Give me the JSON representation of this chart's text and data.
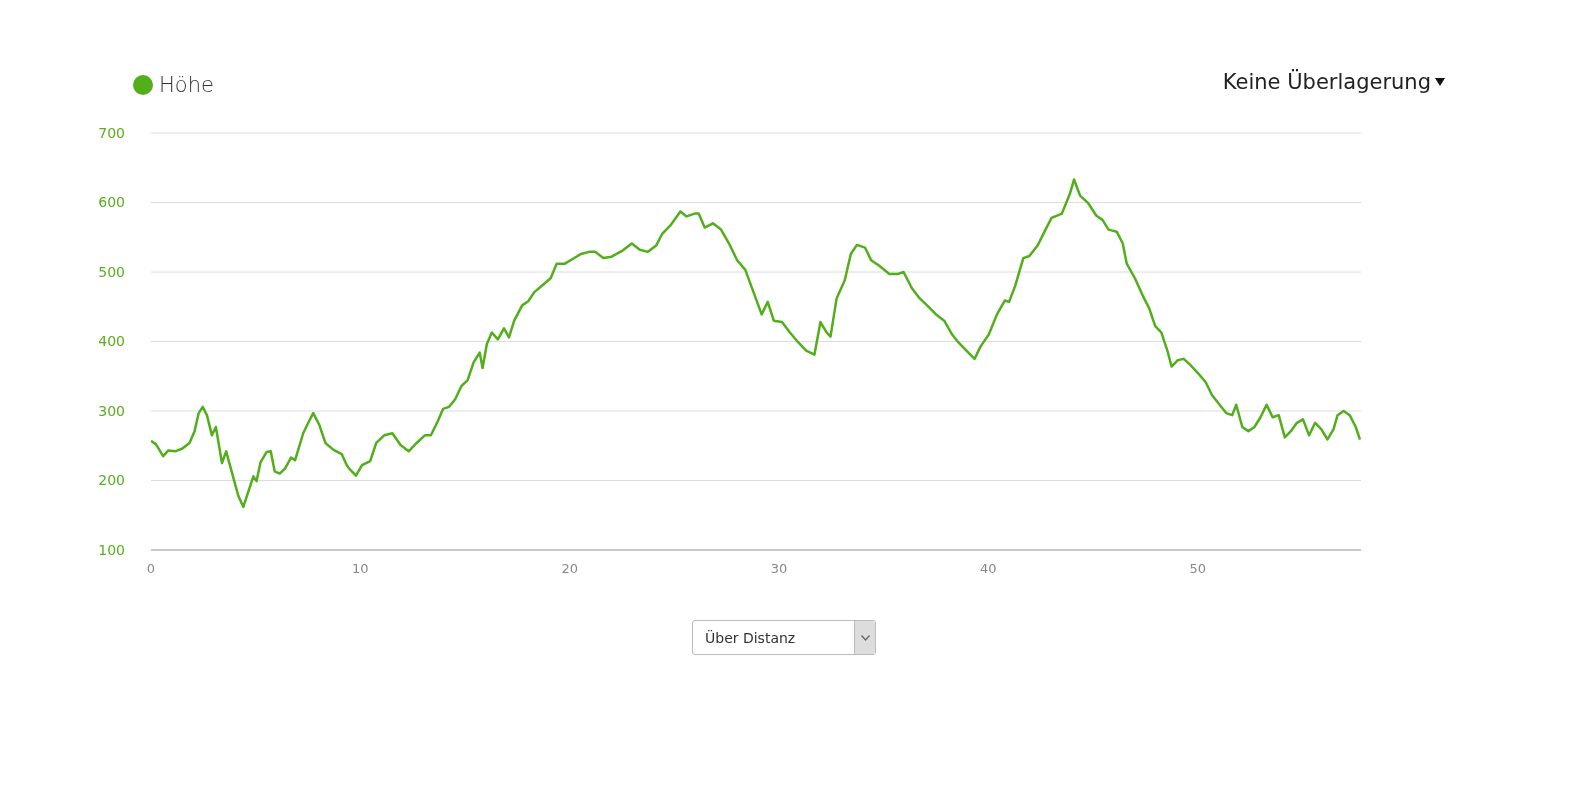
{
  "chart_data": {
    "type": "line",
    "x": [
      0,
      0.24,
      0.58,
      0.82,
      1.16,
      1.5,
      1.84,
      2.08,
      2.28,
      2.47,
      2.67,
      2.91,
      3.1,
      3.39,
      3.59,
      3.88,
      4.17,
      4.41,
      4.65,
      4.89,
      5.04,
      5.23,
      5.52,
      5.72,
      5.91,
      6.15,
      6.4,
      6.69,
      6.88,
      7.27,
      7.56,
      7.75,
      8.04,
      8.33,
      8.72,
      9.11,
      9.35,
      9.5,
      9.79,
      10.08,
      10.47,
      10.76,
      11.14,
      11.53,
      11.92,
      12.31,
      12.69,
      13.08,
      13.37,
      13.71,
      13.95,
      14.24,
      14.53,
      14.83,
      15.12,
      15.41,
      15.7,
      15.84,
      16.04,
      16.28,
      16.57,
      16.86,
      17.1,
      17.35,
      17.73,
      18.02,
      18.31,
      18.7,
      19.09,
      19.38,
      19.77,
      20.16,
      20.54,
      20.93,
      21.22,
      21.61,
      22.0,
      22.48,
      22.97,
      23.35,
      23.74,
      24.13,
      24.42,
      24.81,
      25.29,
      25.58,
      25.97,
      26.16,
      26.45,
      26.84,
      27.23,
      27.61,
      28.0,
      28.39,
      28.78,
      29.17,
      29.46,
      29.75,
      30.14,
      30.52,
      30.91,
      31.3,
      31.69,
      31.98,
      32.27,
      32.46,
      32.75,
      33.14,
      33.43,
      33.72,
      34.11,
      34.4,
      34.79,
      35.27,
      35.66,
      35.95,
      36.34,
      36.72,
      37.11,
      37.5,
      37.89,
      38.27,
      38.56,
      38.95,
      39.34,
      39.63,
      40.02,
      40.41,
      40.79,
      40.99,
      41.28,
      41.67,
      41.96,
      42.35,
      42.73,
      43.02,
      43.51,
      43.9,
      44.09,
      44.38,
      44.77,
      45.16,
      45.45,
      45.74,
      46.13,
      46.42,
      46.61,
      47.0,
      47.39,
      47.68,
      47.97,
      48.26,
      48.55,
      48.75,
      49.04,
      49.33,
      49.62,
      50.0,
      50.39,
      50.68,
      50.97,
      51.36,
      51.65,
      51.84,
      52.13,
      52.42,
      52.71,
      53.0,
      53.29,
      53.58,
      53.87,
      54.16,
      54.45,
      54.74,
      55.03,
      55.32,
      55.61,
      55.9,
      56.2,
      56.49,
      56.68,
      56.97,
      57.26,
      57.55,
      57.75
    ],
    "series": [
      {
        "name": "Höhe",
        "color": "#52ae1a",
        "values": [
          257,
          252,
          235,
          243,
          242,
          246,
          254,
          271,
          297,
          306,
          294,
          265,
          277,
          225,
          242,
          210,
          178,
          162,
          184,
          206,
          199,
          226,
          241,
          242,
          213,
          210,
          217,
          233,
          229,
          268,
          286,
          297,
          280,
          254,
          244,
          238,
          222,
          216,
          207,
          222,
          228,
          254,
          265,
          268,
          251,
          242,
          254,
          265,
          265,
          286,
          303,
          306,
          317,
          336,
          344,
          370,
          384,
          362,
          396,
          413,
          403,
          419,
          406,
          430,
          452,
          458,
          471,
          481,
          491,
          512,
          512,
          519,
          526,
          529,
          529,
          520,
          522,
          530,
          541,
          532,
          529,
          538,
          555,
          567,
          587,
          580,
          584,
          584,
          564,
          570,
          561,
          541,
          517,
          503,
          471,
          439,
          457,
          430,
          428,
          413,
          399,
          387,
          381,
          428,
          413,
          407,
          462,
          488,
          526,
          539,
          535,
          517,
          509,
          497,
          497,
          500,
          477,
          462,
          451,
          439,
          430,
          410,
          399,
          387,
          375,
          393,
          410,
          439,
          459,
          457,
          480,
          520,
          523,
          538,
          561,
          578,
          584,
          613,
          633,
          610,
          599,
          581,
          575,
          561,
          558,
          541,
          512,
          491,
          465,
          448,
          422,
          413,
          387,
          364,
          373,
          375,
          367,
          355,
          341,
          323,
          312,
          297,
          294,
          309,
          277,
          271,
          277,
          291,
          309,
          291,
          294,
          262,
          271,
          283,
          288,
          265,
          283,
          274,
          259,
          274,
          294,
          300,
          294,
          277,
          259
        ]
      }
    ],
    "xlim": [
      0,
      57.8
    ],
    "xticks": [
      0,
      10,
      20,
      30,
      40,
      50
    ],
    "ylim": [
      100,
      700
    ],
    "yticks": [
      100,
      200,
      300,
      400,
      500,
      600,
      700
    ],
    "grid": "y",
    "legend": "top left",
    "marker": "none",
    "line_style": "solid",
    "annotations": [
      "Keine Überlagerung",
      "Über Distanz"
    ]
  }
}
